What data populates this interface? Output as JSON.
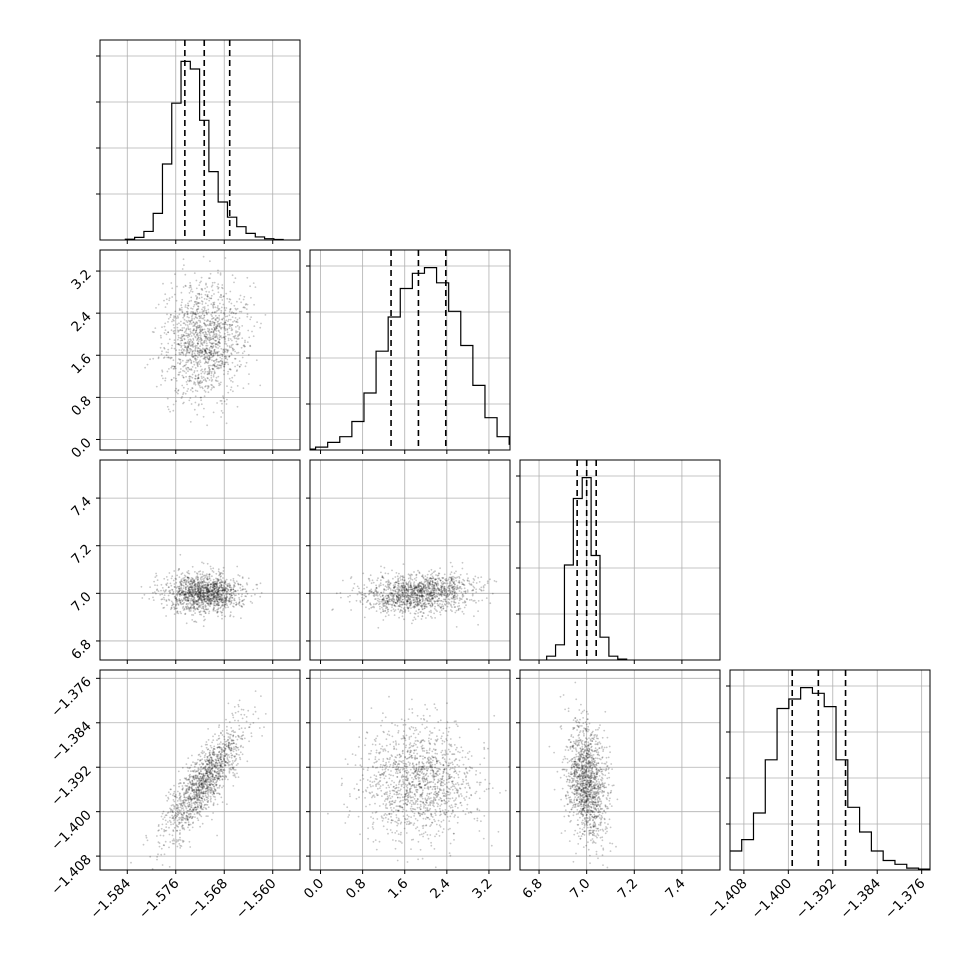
{
  "chart_data": {
    "type": "corner",
    "title": "",
    "parameters": [
      {
        "label": "",
        "range": [
          -1.5885,
          -1.5555
        ],
        "ticks": [
          -1.584,
          -1.576,
          -1.568,
          -1.56
        ],
        "tick_labels": [
          "−1.584",
          "−1.576",
          "−1.568",
          "−1.560"
        ],
        "quantiles": [
          -1.5745,
          -1.5713,
          -1.5671
        ],
        "mean": -1.5713,
        "sd": 0.0031,
        "hist": [
          0.004,
          0.014,
          0.045,
          0.14,
          0.4,
          0.72,
          0.94,
          0.9,
          0.63,
          0.36,
          0.2,
          0.12,
          0.07,
          0.035,
          0.016,
          0.007,
          0.003
        ]
      },
      {
        "label": "",
        "range": [
          -0.2,
          3.6
        ],
        "ticks": [
          0.0,
          0.8,
          1.6,
          2.4,
          3.2
        ],
        "tick_labels": [
          "0.0",
          "0.8",
          "1.6",
          "2.4",
          "3.2"
        ],
        "quantiles": [
          1.34,
          1.86,
          2.38
        ],
        "mean": 1.86,
        "sd": 0.52,
        "hist": [
          0.005,
          0.015,
          0.04,
          0.07,
          0.15,
          0.3,
          0.52,
          0.7,
          0.85,
          0.93,
          0.96,
          0.88,
          0.73,
          0.55,
          0.34,
          0.17,
          0.07,
          0.03,
          0.01
        ]
      },
      {
        "label": "",
        "range": [
          6.72,
          7.56
        ],
        "ticks": [
          6.8,
          7.0,
          7.2,
          7.4
        ],
        "tick_labels": [
          "6.8",
          "7.0",
          "7.2",
          "7.4"
        ],
        "quantiles": [
          6.96,
          7.0,
          7.04
        ],
        "mean": 7.0,
        "sd": 0.04,
        "hist": [
          0.02,
          0.08,
          0.5,
          0.85,
          0.96,
          0.55,
          0.12,
          0.02,
          0.005
        ]
      },
      {
        "label": "",
        "range": [
          -1.4105,
          -1.3745
        ],
        "ticks": [
          -1.408,
          -1.4,
          -1.392,
          -1.384,
          -1.376
        ],
        "tick_labels": [
          "−1.408",
          "−1.400",
          "−1.392",
          "−1.384",
          "−1.376"
        ],
        "quantiles": [
          -1.3993,
          -1.3946,
          -1.3897
        ],
        "mean": -1.3946,
        "sd": 0.0048,
        "hist": [
          0.01,
          0.04,
          0.1,
          0.16,
          0.3,
          0.58,
          0.85,
          0.9,
          0.96,
          0.93,
          0.86,
          0.58,
          0.33,
          0.2,
          0.1,
          0.05,
          0.03,
          0.01,
          0.005
        ]
      }
    ],
    "correlations": {
      "1-0": 0.1,
      "2-0": 0.0,
      "2-1": 0.18,
      "3-0": 0.82,
      "3-1": 0.0,
      "3-2": -0.2
    },
    "contour_levels_sigma": [
      0.5,
      1.0,
      1.5,
      2.0
    ],
    "grid": true
  }
}
